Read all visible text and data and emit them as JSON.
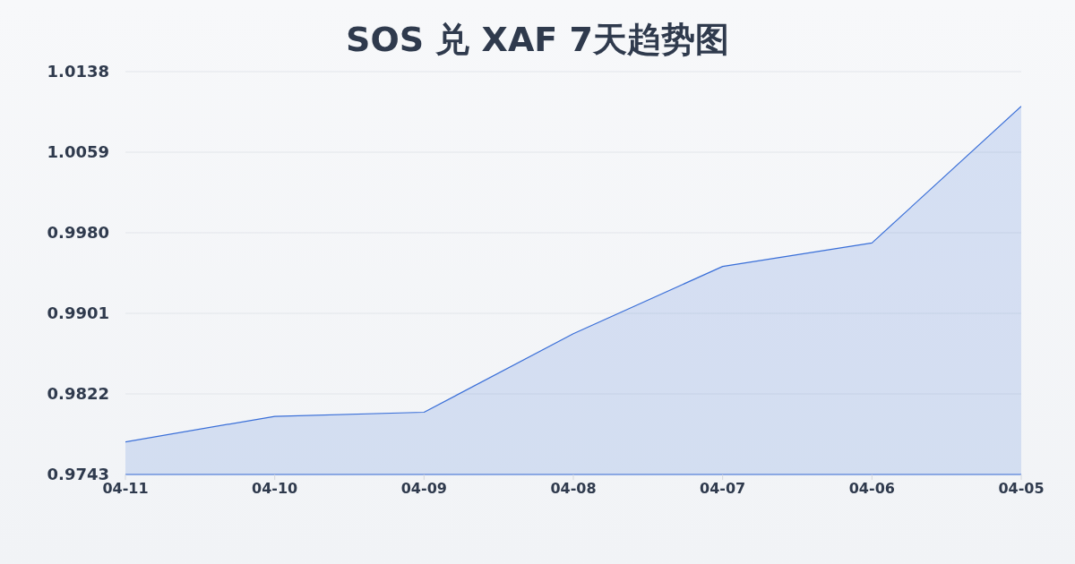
{
  "chart_data": {
    "type": "area",
    "title": "SOS 兑 XAF 7天趋势图",
    "categories": [
      "04-11",
      "04-10",
      "04-09",
      "04-08",
      "04-07",
      "04-06",
      "04-05"
    ],
    "values": [
      0.9775,
      0.98,
      0.9804,
      0.9881,
      0.9947,
      0.997,
      1.0104
    ],
    "color": "#3a6fd8",
    "ylim": [
      0.9743,
      1.0138
    ],
    "yticks": [
      0.9743,
      0.9822,
      0.9901,
      {
        "value": 0.998,
        "label": "0.9980"
      },
      1.0059,
      1.0138
    ],
    "grid": "y"
  }
}
